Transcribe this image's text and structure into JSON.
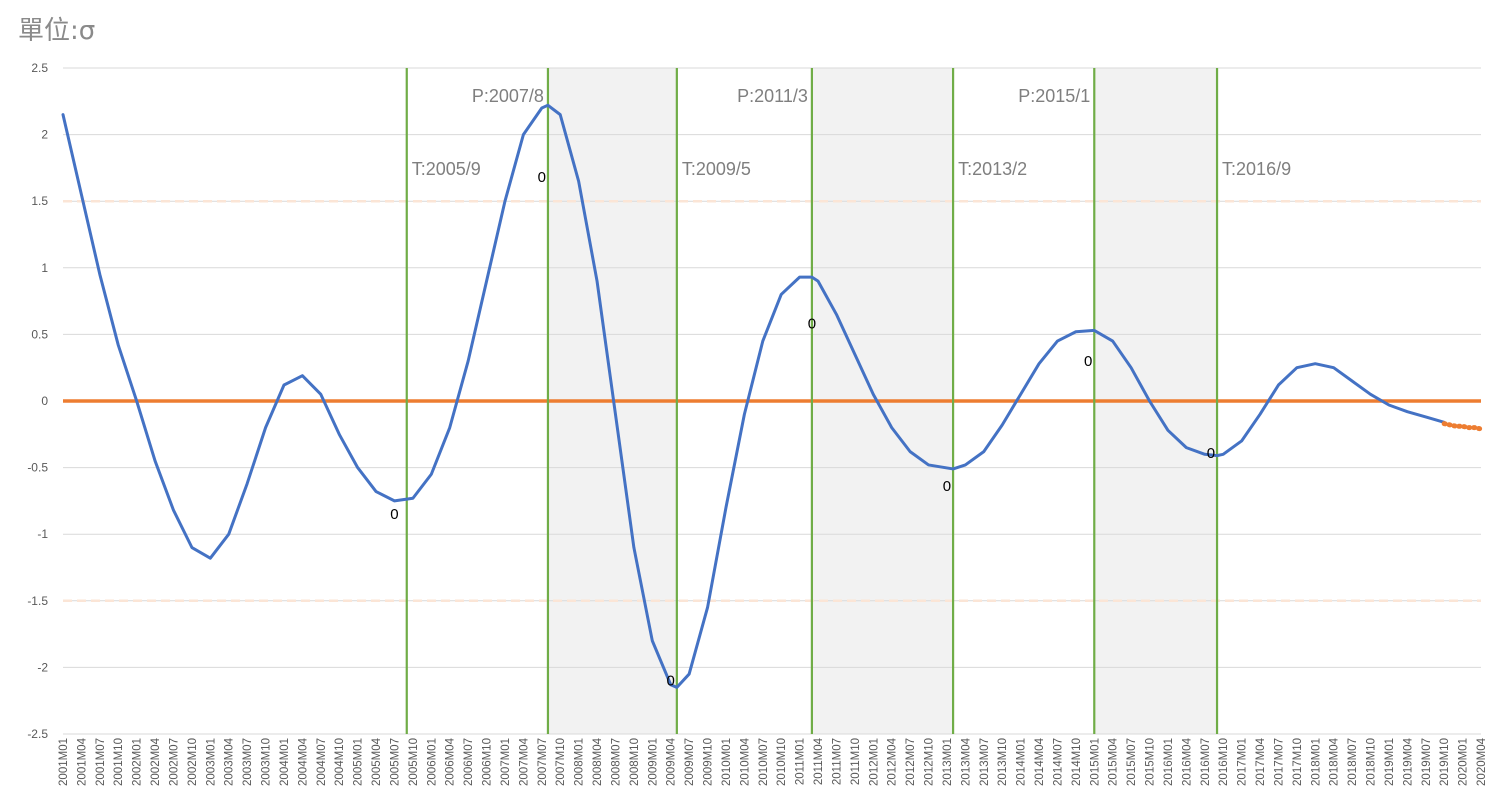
{
  "chart_data": {
    "type": "line",
    "unit_label": "單位:σ",
    "ylim": [
      -2.5,
      2.5
    ],
    "y_ticks": [
      "2.5",
      "2",
      "1.5",
      "1",
      "0.5",
      "0",
      "-0.5",
      "-1",
      "-1.5",
      "-2",
      "-2.5"
    ],
    "x_start": "2001M01",
    "x_end": "2020M04",
    "x_tick_labels": [
      "2001M01",
      "2001M04",
      "2001M07",
      "2001M10",
      "2002M01",
      "2002M04",
      "2002M07",
      "2002M10",
      "2003M01",
      "2003M04",
      "2003M07",
      "2003M10",
      "2004M01",
      "2004M04",
      "2004M07",
      "2004M10",
      "2005M01",
      "2005M04",
      "2005M07",
      "2005M10",
      "2006M01",
      "2006M04",
      "2006M07",
      "2006M10",
      "2007M01",
      "2007M04",
      "2007M07",
      "2007M10",
      "2008M01",
      "2008M04",
      "2008M07",
      "2008M10",
      "2009M01",
      "2009M04",
      "2009M07",
      "2009M10",
      "2010M01",
      "2010M04",
      "2010M07",
      "2010M10",
      "2011M01",
      "2011M04",
      "2011M07",
      "2011M10",
      "2012M01",
      "2012M04",
      "2012M07",
      "2012M10",
      "2013M01",
      "2013M04",
      "2013M07",
      "2013M10",
      "2014M01",
      "2014M04",
      "2014M07",
      "2014M10",
      "2015M01",
      "2015M04",
      "2015M07",
      "2015M10",
      "2016M01",
      "2016M04",
      "2016M07",
      "2016M10",
      "2017M01",
      "2017M04",
      "2017M07",
      "2017M10",
      "2018M01",
      "2018M04",
      "2018M07",
      "2018M10",
      "2019M01",
      "2019M04",
      "2019M07",
      "2019M10",
      "2020M01",
      "2020M04"
    ],
    "series": [
      {
        "color": "#4472c4",
        "style": "solid",
        "points": [
          [
            "2001M01",
            2.15
          ],
          [
            "2001M04",
            1.55
          ],
          [
            "2001M07",
            0.95
          ],
          [
            "2001M10",
            0.42
          ],
          [
            "2002M01",
            0.0
          ],
          [
            "2002M04",
            -0.45
          ],
          [
            "2002M07",
            -0.82
          ],
          [
            "2002M10",
            -1.1
          ],
          [
            "2003M01",
            -1.18
          ],
          [
            "2003M04",
            -1.0
          ],
          [
            "2003M07",
            -0.62
          ],
          [
            "2003M10",
            -0.2
          ],
          [
            "2004M01",
            0.12
          ],
          [
            "2004M04",
            0.19
          ],
          [
            "2004M07",
            0.05
          ],
          [
            "2004M10",
            -0.25
          ],
          [
            "2005M01",
            -0.5
          ],
          [
            "2005M04",
            -0.68
          ],
          [
            "2005M07",
            -0.75
          ],
          [
            "2005M10",
            -0.73
          ],
          [
            "2006M01",
            -0.55
          ],
          [
            "2006M04",
            -0.2
          ],
          [
            "2006M07",
            0.3
          ],
          [
            "2006M10",
            0.9
          ],
          [
            "2007M01",
            1.5
          ],
          [
            "2007M04",
            2.0
          ],
          [
            "2007M07",
            2.2
          ],
          [
            "2007M08",
            2.22
          ],
          [
            "2007M10",
            2.15
          ],
          [
            "2008M01",
            1.65
          ],
          [
            "2008M04",
            0.9
          ],
          [
            "2008M07",
            -0.1
          ],
          [
            "2008M10",
            -1.1
          ],
          [
            "2009M01",
            -1.8
          ],
          [
            "2009M04",
            -2.13
          ],
          [
            "2009M05",
            -2.15
          ],
          [
            "2009M07",
            -2.05
          ],
          [
            "2009M10",
            -1.55
          ],
          [
            "2010M01",
            -0.8
          ],
          [
            "2010M04",
            -0.1
          ],
          [
            "2010M07",
            0.45
          ],
          [
            "2010M10",
            0.8
          ],
          [
            "2011M01",
            0.93
          ],
          [
            "2011M03",
            0.93
          ],
          [
            "2011M04",
            0.9
          ],
          [
            "2011M07",
            0.65
          ],
          [
            "2011M10",
            0.35
          ],
          [
            "2012M01",
            0.05
          ],
          [
            "2012M04",
            -0.2
          ],
          [
            "2012M07",
            -0.38
          ],
          [
            "2012M10",
            -0.48
          ],
          [
            "2013M02",
            -0.51
          ],
          [
            "2013M04",
            -0.48
          ],
          [
            "2013M07",
            -0.38
          ],
          [
            "2013M10",
            -0.18
          ],
          [
            "2014M01",
            0.05
          ],
          [
            "2014M04",
            0.28
          ],
          [
            "2014M07",
            0.45
          ],
          [
            "2014M10",
            0.52
          ],
          [
            "2015M01",
            0.53
          ],
          [
            "2015M04",
            0.45
          ],
          [
            "2015M07",
            0.25
          ],
          [
            "2015M10",
            0.0
          ],
          [
            "2016M01",
            -0.22
          ],
          [
            "2016M04",
            -0.35
          ],
          [
            "2016M07",
            -0.4
          ],
          [
            "2016M09",
            -0.41
          ],
          [
            "2016M10",
            -0.4
          ],
          [
            "2017M01",
            -0.3
          ],
          [
            "2017M04",
            -0.1
          ],
          [
            "2017M07",
            0.12
          ],
          [
            "2017M10",
            0.25
          ],
          [
            "2018M01",
            0.28
          ],
          [
            "2018M04",
            0.25
          ],
          [
            "2018M07",
            0.15
          ],
          [
            "2018M10",
            0.05
          ],
          [
            "2019M01",
            -0.03
          ],
          [
            "2019M04",
            -0.08
          ],
          [
            "2019M07",
            -0.12
          ],
          [
            "2019M10",
            -0.16
          ]
        ]
      },
      {
        "color": "#ed7d31",
        "style": "dotted",
        "points": [
          [
            "2019M10",
            -0.17
          ],
          [
            "2019M11",
            -0.18
          ],
          [
            "2019M12",
            -0.19
          ],
          [
            "2020M01",
            -0.19
          ],
          [
            "2020M02",
            -0.2
          ],
          [
            "2020M03",
            -0.2
          ],
          [
            "2020M04",
            -0.21
          ]
        ]
      }
    ],
    "reference_lines": [
      {
        "y": 0,
        "color": "#ed7d31",
        "style": "solid"
      },
      {
        "y": 1.5,
        "color": "#fbe5d6",
        "style": "dashed"
      },
      {
        "y": -1.5,
        "color": "#fbe5d6",
        "style": "dashed"
      }
    ],
    "shaded_periods": [
      [
        "2007M08",
        "2009M05"
      ],
      [
        "2011M03",
        "2013M02"
      ],
      [
        "2015M01",
        "2016M09"
      ]
    ],
    "turning_points": [
      {
        "date": "2005M09",
        "label": "T:2005/9",
        "row": "low"
      },
      {
        "date": "2007M08",
        "label": "P:2007/8",
        "row": "high",
        "align": "end"
      },
      {
        "date": "2009M05",
        "label": "T:2009/5",
        "row": "low"
      },
      {
        "date": "2011M03",
        "label": "P:2011/3",
        "row": "high",
        "align": "end"
      },
      {
        "date": "2013M02",
        "label": "T:2013/2",
        "row": "low"
      },
      {
        "date": "2015M01",
        "label": "P:2015/1",
        "row": "high",
        "align": "end"
      },
      {
        "date": "2016M09",
        "label": "T:2016/9",
        "row": "low"
      }
    ],
    "zero_labels": [
      {
        "date": "2005M07",
        "y": -0.85,
        "text": "0"
      },
      {
        "date": "2007M07",
        "y": 1.68,
        "text": "0"
      },
      {
        "date": "2009M04",
        "y": -2.1,
        "text": "0"
      },
      {
        "date": "2011M03",
        "y": 0.58,
        "text": "0"
      },
      {
        "date": "2013M01",
        "y": -0.64,
        "text": "0"
      },
      {
        "date": "2014M12",
        "y": 0.3,
        "text": "0"
      },
      {
        "date": "2016M08",
        "y": -0.39,
        "text": "0"
      }
    ],
    "colors": {
      "turning_line": "#70ad47",
      "shade": "#f2f2f2",
      "grid": "#d9d9d9"
    }
  }
}
